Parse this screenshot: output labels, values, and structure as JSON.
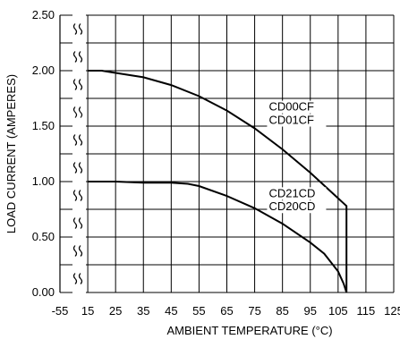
{
  "chart_data": {
    "type": "line",
    "xlabel": "AMBIENT TEMPERATURE (°C)",
    "ylabel": "LOAD CURRENT (AMPERES)",
    "x_ticks": [
      "-55",
      "15",
      "25",
      "35",
      "45",
      "55",
      "65",
      "75",
      "85",
      "95",
      "105",
      "115",
      "125"
    ],
    "y_ticks": [
      "0.00",
      "0.50",
      "1.00",
      "1.50",
      "2.00",
      "2.50"
    ],
    "ylim": [
      0,
      2.5
    ],
    "xlim": [
      15,
      125
    ],
    "x_break": true,
    "grid": true,
    "series": [
      {
        "label": "CD00CF CD01CF",
        "x": [
          15,
          20,
          25,
          35,
          45,
          55,
          65,
          75,
          85,
          95,
          105,
          108,
          108
        ],
        "y": [
          2.0,
          2.0,
          1.98,
          1.94,
          1.87,
          1.77,
          1.64,
          1.48,
          1.29,
          1.08,
          0.85,
          0.78,
          0.0
        ]
      },
      {
        "label": "CD21CD CD20CD",
        "x": [
          15,
          25,
          35,
          45,
          51,
          55,
          65,
          75,
          85,
          95,
          100,
          105,
          107,
          108
        ],
        "y": [
          1.0,
          1.0,
          0.99,
          0.99,
          0.98,
          0.96,
          0.87,
          0.76,
          0.62,
          0.45,
          0.35,
          0.19,
          0.08,
          0.0
        ]
      }
    ],
    "annotations": [
      {
        "text": "CD00CF",
        "x": 87.5,
        "y": 1.64
      },
      {
        "text": "CD01CF",
        "x": 87.5,
        "y": 1.52
      },
      {
        "text": "CD21CD",
        "x": 87.5,
        "y": 0.86
      },
      {
        "text": "CD20CD",
        "x": 87.5,
        "y": 0.74
      }
    ]
  }
}
